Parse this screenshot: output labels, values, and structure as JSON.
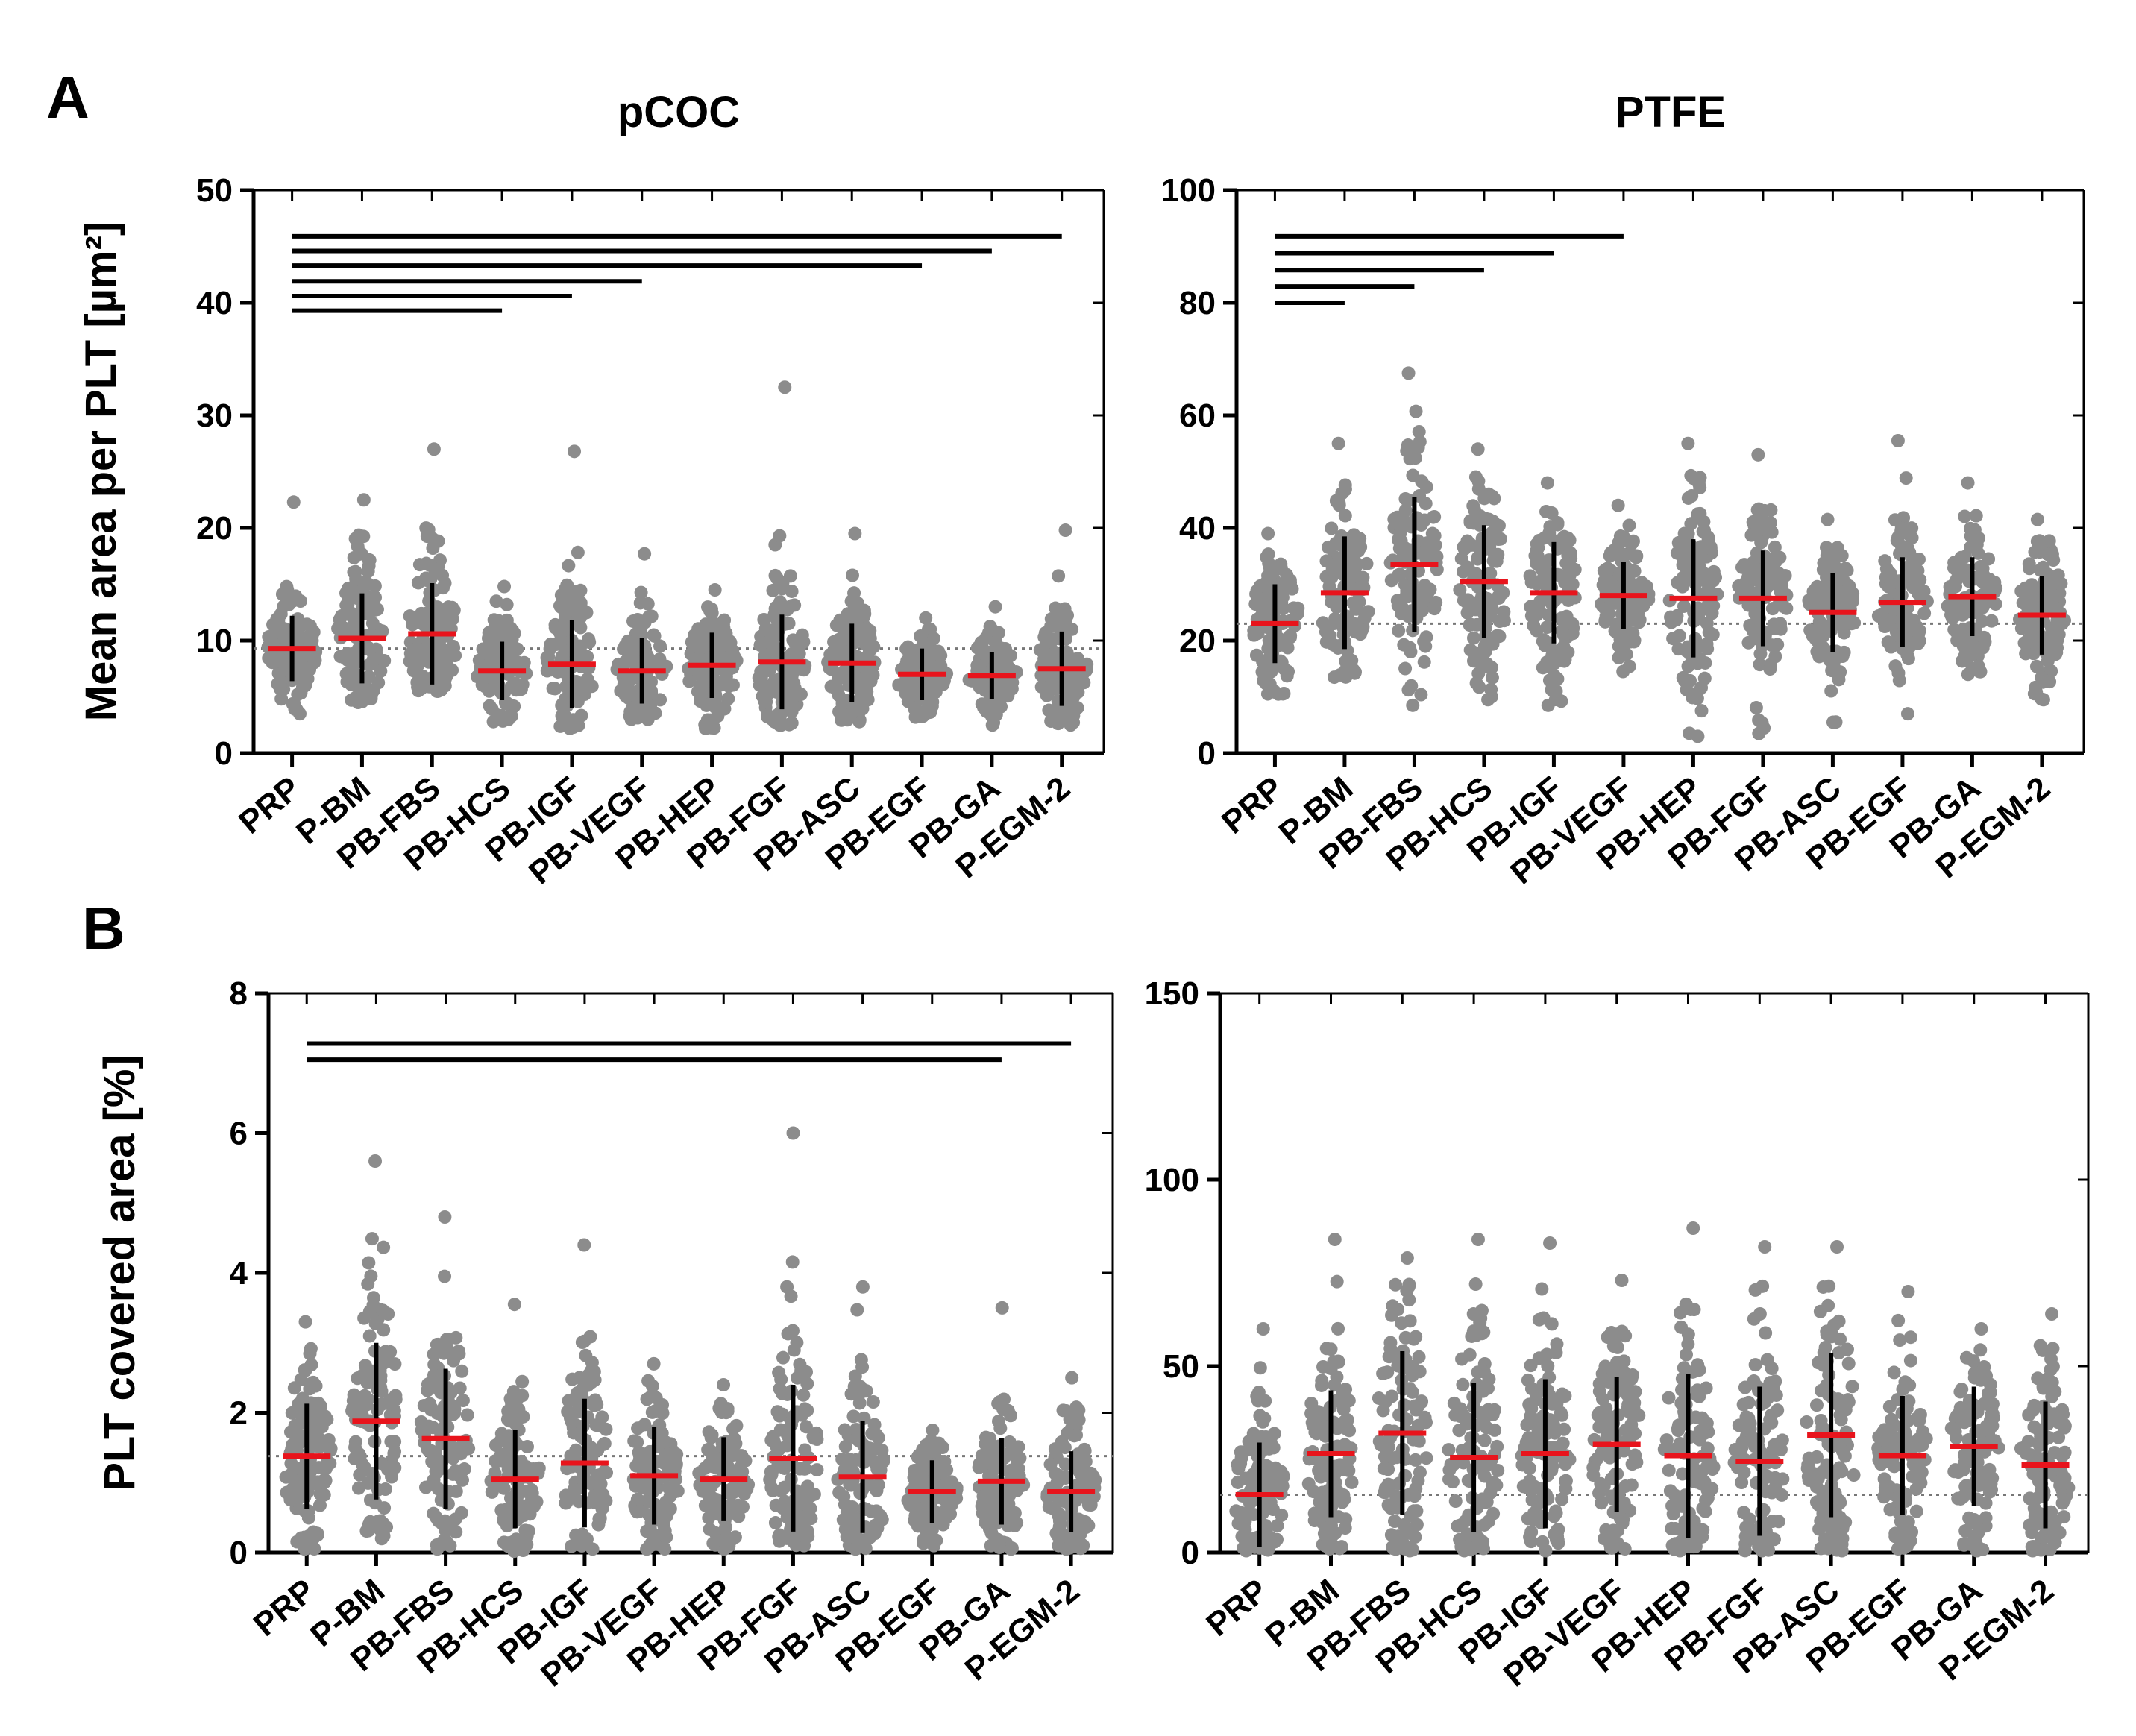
{
  "figure": {
    "panel_labels": [
      "A",
      "B"
    ],
    "column_titles": [
      "pCOC",
      "PTFE"
    ]
  },
  "colors": {
    "points": "#8c8c8c",
    "mean": "#e8141c",
    "sd": "#000000",
    "reference": "#777777",
    "axis": "#000000"
  },
  "chart_data": [
    {
      "id": "A-pCOC",
      "type": "scatter",
      "panel": "A",
      "title": "pCOC",
      "ylabel": "Mean area per PLT [µm²]",
      "ylim": [
        0,
        50
      ],
      "yticks": [
        0,
        10,
        20,
        30,
        40,
        50
      ],
      "categories": [
        "PRP",
        "P-BM",
        "PB-FBS",
        "PB-HCS",
        "PB-IGF",
        "PB-VEGF",
        "PB-HEP",
        "PB-FGF",
        "PB-ASC",
        "PB-EGF",
        "PB-GA",
        "P-EGM-2"
      ],
      "means": [
        9.3,
        10.2,
        10.6,
        7.3,
        7.9,
        7.3,
        7.8,
        8.1,
        8.0,
        7.0,
        6.9,
        7.5
      ],
      "sd": [
        2.9,
        4.0,
        4.5,
        2.6,
        3.9,
        2.9,
        2.9,
        4.2,
        3.5,
        2.3,
        2.1,
        3.3
      ],
      "min": [
        3.5,
        4.5,
        5.5,
        2.8,
        2.2,
        3.0,
        2.2,
        2.5,
        2.8,
        3.2,
        2.5,
        2.5
      ],
      "max": [
        22.3,
        22.5,
        27.0,
        14.8,
        26.8,
        17.7,
        14.5,
        32.5,
        19.5,
        12.0,
        13.0,
        19.8
      ],
      "n_points": 110,
      "reference_line": 9.3,
      "significance_bars": [
        {
          "from": "PRP",
          "to": "PB-HCS",
          "level": 39.3
        },
        {
          "from": "PRP",
          "to": "PB-IGF",
          "level": 40.6
        },
        {
          "from": "PRP",
          "to": "PB-VEGF",
          "level": 41.9
        },
        {
          "from": "PRP",
          "to": "PB-EGF",
          "level": 43.3
        },
        {
          "from": "PRP",
          "to": "PB-GA",
          "level": 44.6
        },
        {
          "from": "PRP",
          "to": "P-EGM-2",
          "level": 45.9
        }
      ]
    },
    {
      "id": "A-PTFE",
      "type": "scatter",
      "panel": "A",
      "title": "PTFE",
      "ylabel": "",
      "ylim": [
        0,
        100
      ],
      "yticks": [
        0,
        20,
        40,
        60,
        80,
        100
      ],
      "categories": [
        "PRP",
        "P-BM",
        "PB-FBS",
        "PB-HCS",
        "PB-IGF",
        "PB-VEGF",
        "PB-HEP",
        "PB-FGF",
        "PB-ASC",
        "PB-EGF",
        "PB-GA",
        "P-EGM-2"
      ],
      "means": [
        23.0,
        28.5,
        33.5,
        30.5,
        28.5,
        28.0,
        27.5,
        27.5,
        25.0,
        26.8,
        27.8,
        24.5
      ],
      "sd": [
        7.0,
        10.0,
        12.0,
        10.0,
        9.0,
        6.0,
        10.5,
        8.5,
        7.0,
        8.0,
        7.0,
        7.0
      ],
      "min": [
        10.5,
        13.5,
        8.5,
        9.5,
        8.5,
        14.5,
        3.0,
        3.5,
        5.5,
        7.0,
        14.0,
        9.5
      ],
      "max": [
        39.0,
        55.0,
        67.5,
        54.0,
        48.0,
        44.0,
        55.0,
        53.0,
        41.5,
        55.5,
        48.0,
        41.5
      ],
      "n_points": 110,
      "reference_line": 23.0,
      "significance_bars": [
        {
          "from": "PRP",
          "to": "P-BM",
          "level": 80.0
        },
        {
          "from": "PRP",
          "to": "PB-FBS",
          "level": 82.9
        },
        {
          "from": "PRP",
          "to": "PB-HCS",
          "level": 85.8
        },
        {
          "from": "PRP",
          "to": "PB-IGF",
          "level": 88.8
        },
        {
          "from": "PRP",
          "to": "PB-VEGF",
          "level": 91.8
        }
      ]
    },
    {
      "id": "B-pCOC",
      "type": "scatter",
      "panel": "B",
      "title": "",
      "ylabel": "PLT covered area [%]",
      "ylim": [
        0,
        8
      ],
      "yticks": [
        0,
        2,
        4,
        6,
        8
      ],
      "categories": [
        "PRP",
        "P-BM",
        "PB-FBS",
        "PB-HCS",
        "PB-IGF",
        "PB-VEGF",
        "PB-HEP",
        "PB-FGF",
        "PB-ASC",
        "PB-EGF",
        "PB-GA",
        "P-EGM-2"
      ],
      "means": [
        1.38,
        1.88,
        1.63,
        1.05,
        1.28,
        1.1,
        1.05,
        1.35,
        1.08,
        0.87,
        1.02,
        0.87
      ],
      "sd": [
        0.75,
        1.12,
        1.0,
        0.7,
        0.92,
        0.7,
        0.6,
        1.05,
        0.8,
        0.45,
        0.62,
        0.58
      ],
      "min": [
        0.05,
        0.2,
        0.05,
        0.02,
        0.05,
        0.05,
        0.05,
        0.1,
        0.05,
        0.1,
        0.05,
        0.05
      ],
      "max": [
        3.3,
        5.6,
        4.8,
        3.55,
        4.4,
        2.7,
        2.4,
        6.0,
        3.8,
        1.75,
        3.5,
        2.5
      ],
      "n_points": 110,
      "reference_line": 1.38,
      "significance_bars": [
        {
          "from": "PRP",
          "to": "PB-GA",
          "level": 7.05
        },
        {
          "from": "PRP",
          "to": "P-EGM-2",
          "level": 7.28
        }
      ]
    },
    {
      "id": "B-PTFE",
      "type": "scatter",
      "panel": "B",
      "title": "",
      "ylabel": "",
      "ylim": [
        0,
        150
      ],
      "yticks": [
        0,
        50,
        100,
        150
      ],
      "categories": [
        "PRP",
        "P-BM",
        "PB-FBS",
        "PB-HCS",
        "PB-IGF",
        "PB-VEGF",
        "PB-HEP",
        "PB-FGF",
        "PB-ASC",
        "PB-EGF",
        "PB-GA",
        "P-EGM-2"
      ],
      "means": [
        15.5,
        26.5,
        32.0,
        25.5,
        26.5,
        29.0,
        26.0,
        24.5,
        31.5,
        26.0,
        28.5,
        23.5
      ],
      "sd": [
        14.0,
        17.0,
        22.0,
        20.0,
        20.0,
        18.0,
        22.0,
        20.0,
        22.0,
        16.0,
        16.0,
        17.0
      ],
      "min": [
        0.5,
        1.0,
        0.5,
        0.5,
        0.5,
        1.0,
        0.5,
        0.5,
        0.5,
        1.0,
        0.5,
        0.5
      ],
      "max": [
        60.0,
        84.0,
        79.0,
        84.0,
        83.0,
        73.0,
        87.0,
        82.0,
        82.0,
        70.0,
        60.0,
        64.0
      ],
      "n_points": 110,
      "reference_line": 15.5,
      "significance_bars": []
    }
  ]
}
